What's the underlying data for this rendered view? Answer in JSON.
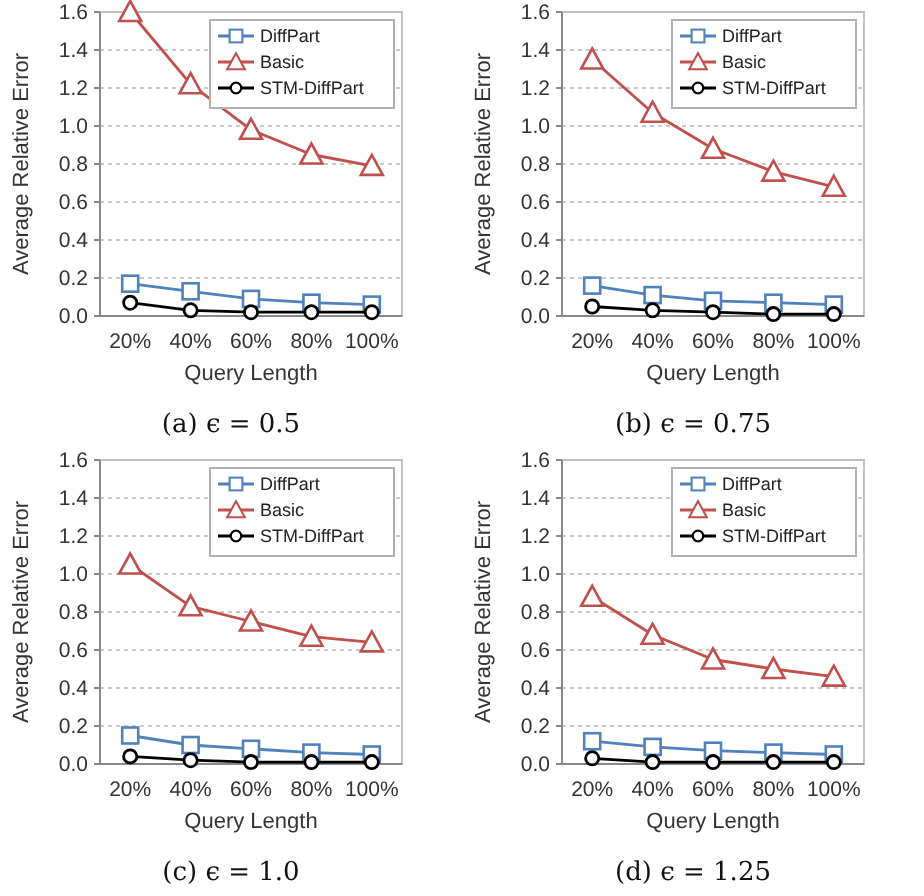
{
  "chart_data": [
    {
      "type": "line",
      "title": "(a) ϵ = 0.5",
      "xlabel": "Query Length",
      "ylabel": "Average Relative Error",
      "categories": [
        "20%",
        "40%",
        "60%",
        "80%",
        "100%"
      ],
      "ylim": [
        0,
        1.6
      ],
      "yticks": [
        {
          "value": 0,
          "label": "0.0"
        },
        {
          "value": 0.2,
          "label": "0.2"
        },
        {
          "value": 0.4,
          "label": "0.4"
        },
        {
          "value": 0.6,
          "label": "0.6"
        },
        {
          "value": 0.8,
          "label": "0.8"
        },
        {
          "value": 1,
          "label": "1.0"
        },
        {
          "value": 1.2,
          "label": "1.2"
        },
        {
          "value": 1.4,
          "label": "1.4"
        },
        {
          "value": 1.6,
          "label": "1.6"
        }
      ],
      "grid": "y",
      "legend": "top right",
      "series": [
        {
          "name": "DiffPart",
          "color": "#4f81bd",
          "marker": "square",
          "values": [
            0.17,
            0.13,
            0.09,
            0.07,
            0.06
          ]
        },
        {
          "name": "Basic",
          "color": "#c0504d",
          "marker": "triangle",
          "values": [
            1.6,
            1.22,
            0.98,
            0.85,
            0.79
          ]
        },
        {
          "name": "STM-DiffPart",
          "color": "#000000",
          "marker": "circle",
          "values": [
            0.07,
            0.03,
            0.02,
            0.02,
            0.02
          ]
        }
      ]
    },
    {
      "type": "line",
      "title": "(b) ϵ = 0.75",
      "xlabel": "Query Length",
      "ylabel": "Average Relative Error",
      "categories": [
        "20%",
        "40%",
        "60%",
        "80%",
        "100%"
      ],
      "ylim": [
        0,
        1.6
      ],
      "yticks": [
        {
          "value": 0,
          "label": "0.0"
        },
        {
          "value": 0.2,
          "label": "0.2"
        },
        {
          "value": 0.4,
          "label": "0.4"
        },
        {
          "value": 0.6,
          "label": "0.6"
        },
        {
          "value": 0.8,
          "label": "0.8"
        },
        {
          "value": 1,
          "label": "1.0"
        },
        {
          "value": 1.2,
          "label": "1.2"
        },
        {
          "value": 1.4,
          "label": "1.4"
        },
        {
          "value": 1.6,
          "label": "1.6"
        }
      ],
      "grid": "y",
      "legend": "top right",
      "series": [
        {
          "name": "DiffPart",
          "color": "#4f81bd",
          "marker": "square",
          "values": [
            0.16,
            0.11,
            0.08,
            0.07,
            0.06
          ]
        },
        {
          "name": "Basic",
          "color": "#c0504d",
          "marker": "triangle",
          "values": [
            1.35,
            1.07,
            0.88,
            0.76,
            0.68
          ]
        },
        {
          "name": "STM-DiffPart",
          "color": "#000000",
          "marker": "circle",
          "values": [
            0.05,
            0.03,
            0.02,
            0.01,
            0.01
          ]
        }
      ]
    },
    {
      "type": "line",
      "title": "(c) ϵ = 1.0",
      "xlabel": "Query Length",
      "ylabel": "Average Relative Error",
      "categories": [
        "20%",
        "40%",
        "60%",
        "80%",
        "100%"
      ],
      "ylim": [
        0,
        1.6
      ],
      "yticks": [
        {
          "value": 0,
          "label": "0.0"
        },
        {
          "value": 0.2,
          "label": "0.2"
        },
        {
          "value": 0.4,
          "label": "0.4"
        },
        {
          "value": 0.6,
          "label": "0.6"
        },
        {
          "value": 0.8,
          "label": "0.8"
        },
        {
          "value": 1,
          "label": "1.0"
        },
        {
          "value": 1.2,
          "label": "1.2"
        },
        {
          "value": 1.4,
          "label": "1.4"
        },
        {
          "value": 1.6,
          "label": "1.6"
        }
      ],
      "grid": "y",
      "legend": "top right",
      "series": [
        {
          "name": "DiffPart",
          "color": "#4f81bd",
          "marker": "square",
          "values": [
            0.15,
            0.1,
            0.08,
            0.06,
            0.05
          ]
        },
        {
          "name": "Basic",
          "color": "#c0504d",
          "marker": "triangle",
          "values": [
            1.05,
            0.83,
            0.75,
            0.67,
            0.64
          ]
        },
        {
          "name": "STM-DiffPart",
          "color": "#000000",
          "marker": "circle",
          "values": [
            0.04,
            0.02,
            0.01,
            0.01,
            0.01
          ]
        }
      ]
    },
    {
      "type": "line",
      "title": "(d) ϵ = 1.25",
      "xlabel": "Query Length",
      "ylabel": "Average Relative Error",
      "categories": [
        "20%",
        "40%",
        "60%",
        "80%",
        "100%"
      ],
      "ylim": [
        0,
        1.6
      ],
      "yticks": [
        {
          "value": 0,
          "label": "0.0"
        },
        {
          "value": 0.2,
          "label": "0.2"
        },
        {
          "value": 0.4,
          "label": "0.4"
        },
        {
          "value": 0.6,
          "label": "0.6"
        },
        {
          "value": 0.8,
          "label": "0.8"
        },
        {
          "value": 1,
          "label": "1.0"
        },
        {
          "value": 1.2,
          "label": "1.2"
        },
        {
          "value": 1.4,
          "label": "1.4"
        },
        {
          "value": 1.6,
          "label": "1.6"
        }
      ],
      "grid": "y",
      "legend": "top right",
      "series": [
        {
          "name": "DiffPart",
          "color": "#4f81bd",
          "marker": "square",
          "values": [
            0.12,
            0.09,
            0.07,
            0.06,
            0.05
          ]
        },
        {
          "name": "Basic",
          "color": "#c0504d",
          "marker": "triangle",
          "values": [
            0.88,
            0.68,
            0.55,
            0.5,
            0.46
          ]
        },
        {
          "name": "STM-DiffPart",
          "color": "#000000",
          "marker": "circle",
          "values": [
            0.03,
            0.01,
            0.01,
            0.01,
            0.01
          ]
        }
      ]
    }
  ]
}
